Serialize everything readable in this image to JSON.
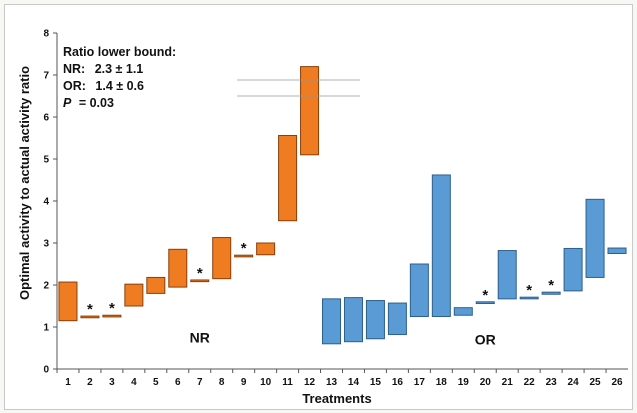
{
  "chart_data": {
    "type": "bar",
    "subtype": "floating-range",
    "xlabel": "Treatments",
    "ylabel": "Optimal activity to actual activity ratio",
    "ylim": [
      0,
      8
    ],
    "yticks": [
      "0",
      "1",
      "2",
      "3",
      "4",
      "5",
      "6",
      "7",
      "8"
    ],
    "grid": false,
    "categories": [
      "1",
      "2",
      "3",
      "4",
      "5",
      "6",
      "7",
      "8",
      "9",
      "10",
      "11",
      "12",
      "13",
      "14",
      "15",
      "16",
      "17",
      "18",
      "19",
      "20",
      "21",
      "22",
      "23",
      "24",
      "25",
      "26"
    ],
    "series": [
      {
        "name": "NR",
        "color": "#f07c22",
        "edge_color": "#8a3f0a",
        "ranges": [
          {
            "x": "1",
            "low": 1.15,
            "high": 2.07,
            "significant": false
          },
          {
            "x": "2",
            "low": 1.22,
            "high": 1.26,
            "significant": true
          },
          {
            "x": "3",
            "low": 1.24,
            "high": 1.28,
            "significant": true
          },
          {
            "x": "4",
            "low": 1.5,
            "high": 2.02,
            "significant": false
          },
          {
            "x": "5",
            "low": 1.8,
            "high": 2.18,
            "significant": false
          },
          {
            "x": "6",
            "low": 1.95,
            "high": 2.85,
            "significant": false
          },
          {
            "x": "7",
            "low": 2.08,
            "high": 2.12,
            "significant": true
          },
          {
            "x": "8",
            "low": 2.15,
            "high": 3.13,
            "significant": false
          },
          {
            "x": "9",
            "low": 2.67,
            "high": 2.71,
            "significant": true
          },
          {
            "x": "10",
            "low": 2.72,
            "high": 3.0,
            "significant": false
          },
          {
            "x": "11",
            "low": 3.53,
            "high": 5.56,
            "significant": false
          },
          {
            "x": "12",
            "low": 5.1,
            "high": 7.2,
            "significant": false
          }
        ]
      },
      {
        "name": "OR",
        "color": "#5b9bd5",
        "edge_color": "#2d5f8c",
        "ranges": [
          {
            "x": "13",
            "low": 0.6,
            "high": 1.67,
            "significant": false
          },
          {
            "x": "14",
            "low": 0.65,
            "high": 1.7,
            "significant": false
          },
          {
            "x": "15",
            "low": 0.72,
            "high": 1.63,
            "significant": false
          },
          {
            "x": "16",
            "low": 0.82,
            "high": 1.57,
            "significant": false
          },
          {
            "x": "17",
            "low": 1.25,
            "high": 2.5,
            "significant": false
          },
          {
            "x": "18",
            "low": 1.25,
            "high": 4.62,
            "significant": false
          },
          {
            "x": "19",
            "low": 1.28,
            "high": 1.46,
            "significant": false
          },
          {
            "x": "20",
            "low": 1.56,
            "high": 1.6,
            "significant": true
          },
          {
            "x": "21",
            "low": 1.67,
            "high": 2.82,
            "significant": false
          },
          {
            "x": "22",
            "low": 1.67,
            "high": 1.71,
            "significant": true
          },
          {
            "x": "23",
            "low": 1.78,
            "high": 1.83,
            "significant": true
          },
          {
            "x": "24",
            "low": 1.86,
            "high": 2.87,
            "significant": false
          },
          {
            "x": "25",
            "low": 2.18,
            "high": 4.04,
            "significant": false
          },
          {
            "x": "26",
            "low": 2.75,
            "high": 2.88,
            "significant": false
          }
        ]
      }
    ],
    "significance_marker": "*",
    "group_labels": [
      {
        "text": "NR",
        "x": "7",
        "y": 0.75
      },
      {
        "text": "OR",
        "x": "20",
        "y": 0.7
      }
    ],
    "annotation": {
      "lines": [
        {
          "label": "Ratio lower bound:",
          "value": ""
        },
        {
          "label": "NR:",
          "value": "2.3 ± 1.1"
        },
        {
          "label": "OR:",
          "value": "1.4 ± 0.6"
        },
        {
          "label": "P",
          "value": "= 0.03"
        }
      ]
    }
  }
}
